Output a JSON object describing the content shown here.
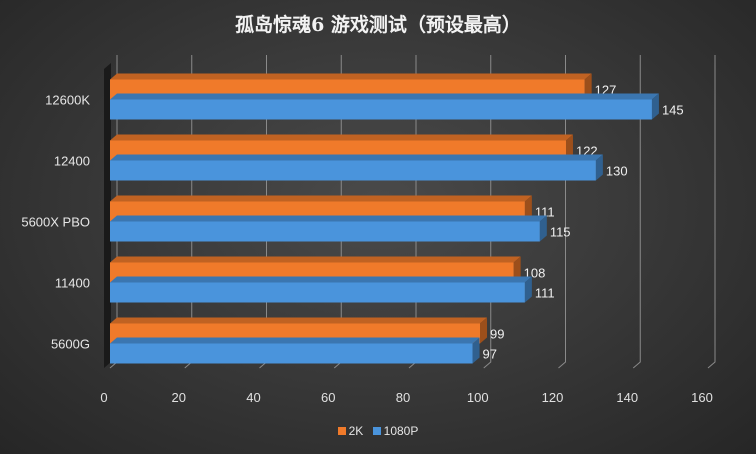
{
  "chart_data": {
    "type": "bar",
    "orientation": "horizontal",
    "style": "3d",
    "title": "孤岛惊魂6 游戏测试（预设最高）",
    "categories": [
      "12600K",
      "12400",
      "5600X PBO",
      "11400",
      "5600G"
    ],
    "series": [
      {
        "name": "2K",
        "color": "#f07a2a",
        "values": [
          127,
          122,
          111,
          108,
          99
        ]
      },
      {
        "name": "1080P",
        "color": "#4a94dc",
        "values": [
          145,
          130,
          115,
          111,
          97
        ]
      }
    ],
    "xlim": [
      0,
      160
    ],
    "xticks": [
      "0",
      "20",
      "40",
      "60",
      "80",
      "100",
      "120",
      "140",
      "160"
    ],
    "grid": true,
    "data_labels": true,
    "legend_position": "bottom"
  }
}
